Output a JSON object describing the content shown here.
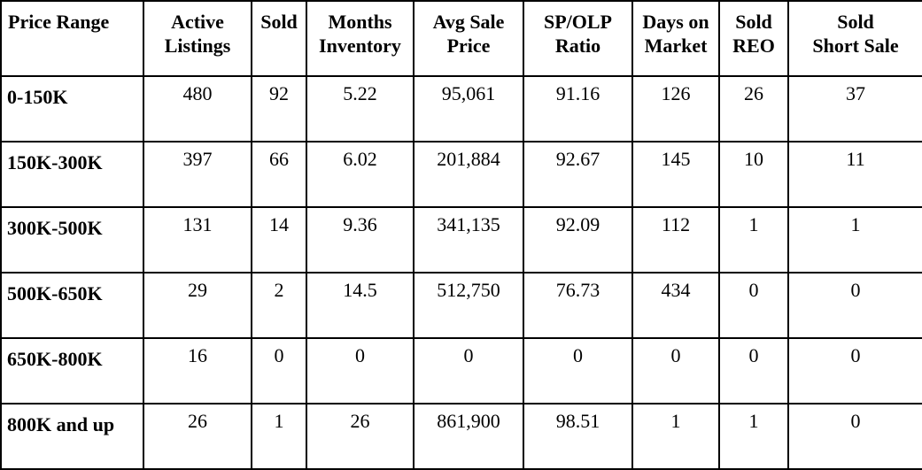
{
  "columns": [
    [
      "Price Range"
    ],
    [
      "Active",
      "Listings"
    ],
    [
      "Sold"
    ],
    [
      "Months",
      "Inventory"
    ],
    [
      "Avg Sale",
      "Price"
    ],
    [
      "SP/OLP",
      "Ratio"
    ],
    [
      "Days on",
      "Market"
    ],
    [
      "Sold",
      "REO"
    ],
    [
      "Sold",
      "Short Sale"
    ]
  ],
  "rows": [
    [
      "0-150K",
      "480",
      "92",
      "5.22",
      "95,061",
      "91.16",
      "126",
      "26",
      "37"
    ],
    [
      "150K-300K",
      "397",
      "66",
      "6.02",
      "201,884",
      "92.67",
      "145",
      "10",
      "11"
    ],
    [
      "300K-500K",
      "131",
      "14",
      "9.36",
      "341,135",
      "92.09",
      "112",
      "1",
      "1"
    ],
    [
      "500K-650K",
      "29",
      "2",
      "14.5",
      "512,750",
      "76.73",
      "434",
      "0",
      "0"
    ],
    [
      "650K-800K",
      "16",
      "0",
      "0",
      "0",
      "0",
      "0",
      "0",
      "0"
    ],
    [
      "800K and up",
      "26",
      "1",
      "26",
      "861,900",
      "98.51",
      "1",
      "1",
      "0"
    ]
  ]
}
